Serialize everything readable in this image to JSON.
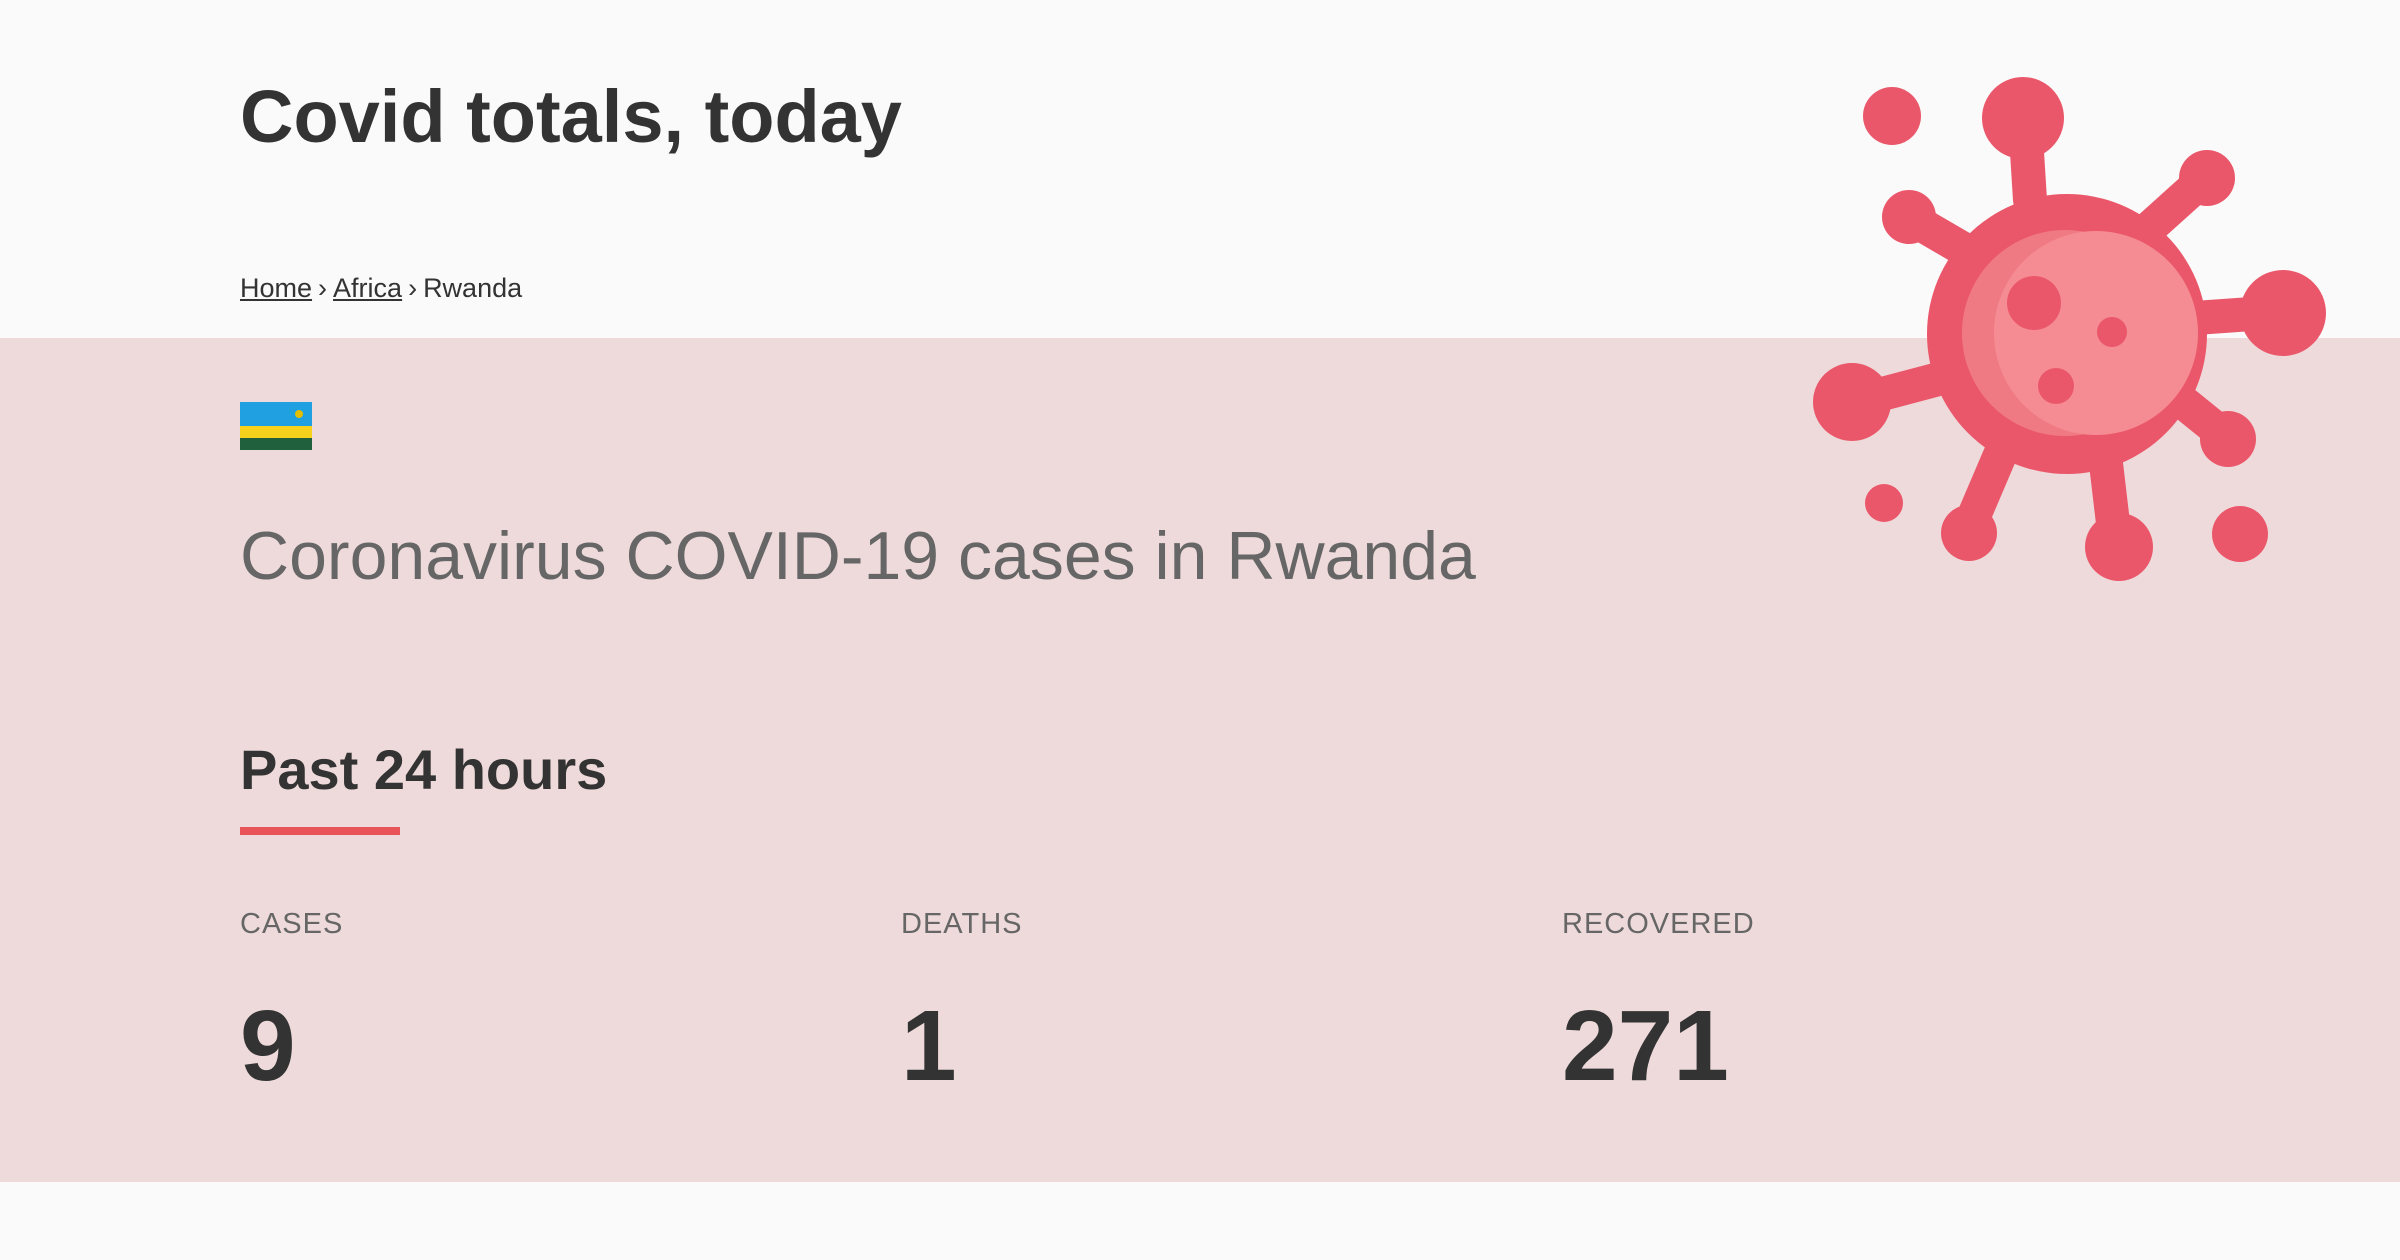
{
  "header": {
    "title": "Covid totals, today",
    "breadcrumb": {
      "home": "Home",
      "region": "Africa",
      "current": "Rwanda",
      "separator": "›"
    }
  },
  "country": {
    "flag_icon": "rwanda-flag-icon",
    "heading": "Coronavirus COVID-19 cases in Rwanda"
  },
  "past24": {
    "heading": "Past 24 hours",
    "accent_color": "#e8545a",
    "stats": [
      {
        "label": "CASES",
        "value": "9"
      },
      {
        "label": "DEATHS",
        "value": "1"
      },
      {
        "label": "RECOVERED",
        "value": "271"
      }
    ]
  },
  "illustration": {
    "icon": "virus-icon",
    "color": "#eb576a"
  }
}
